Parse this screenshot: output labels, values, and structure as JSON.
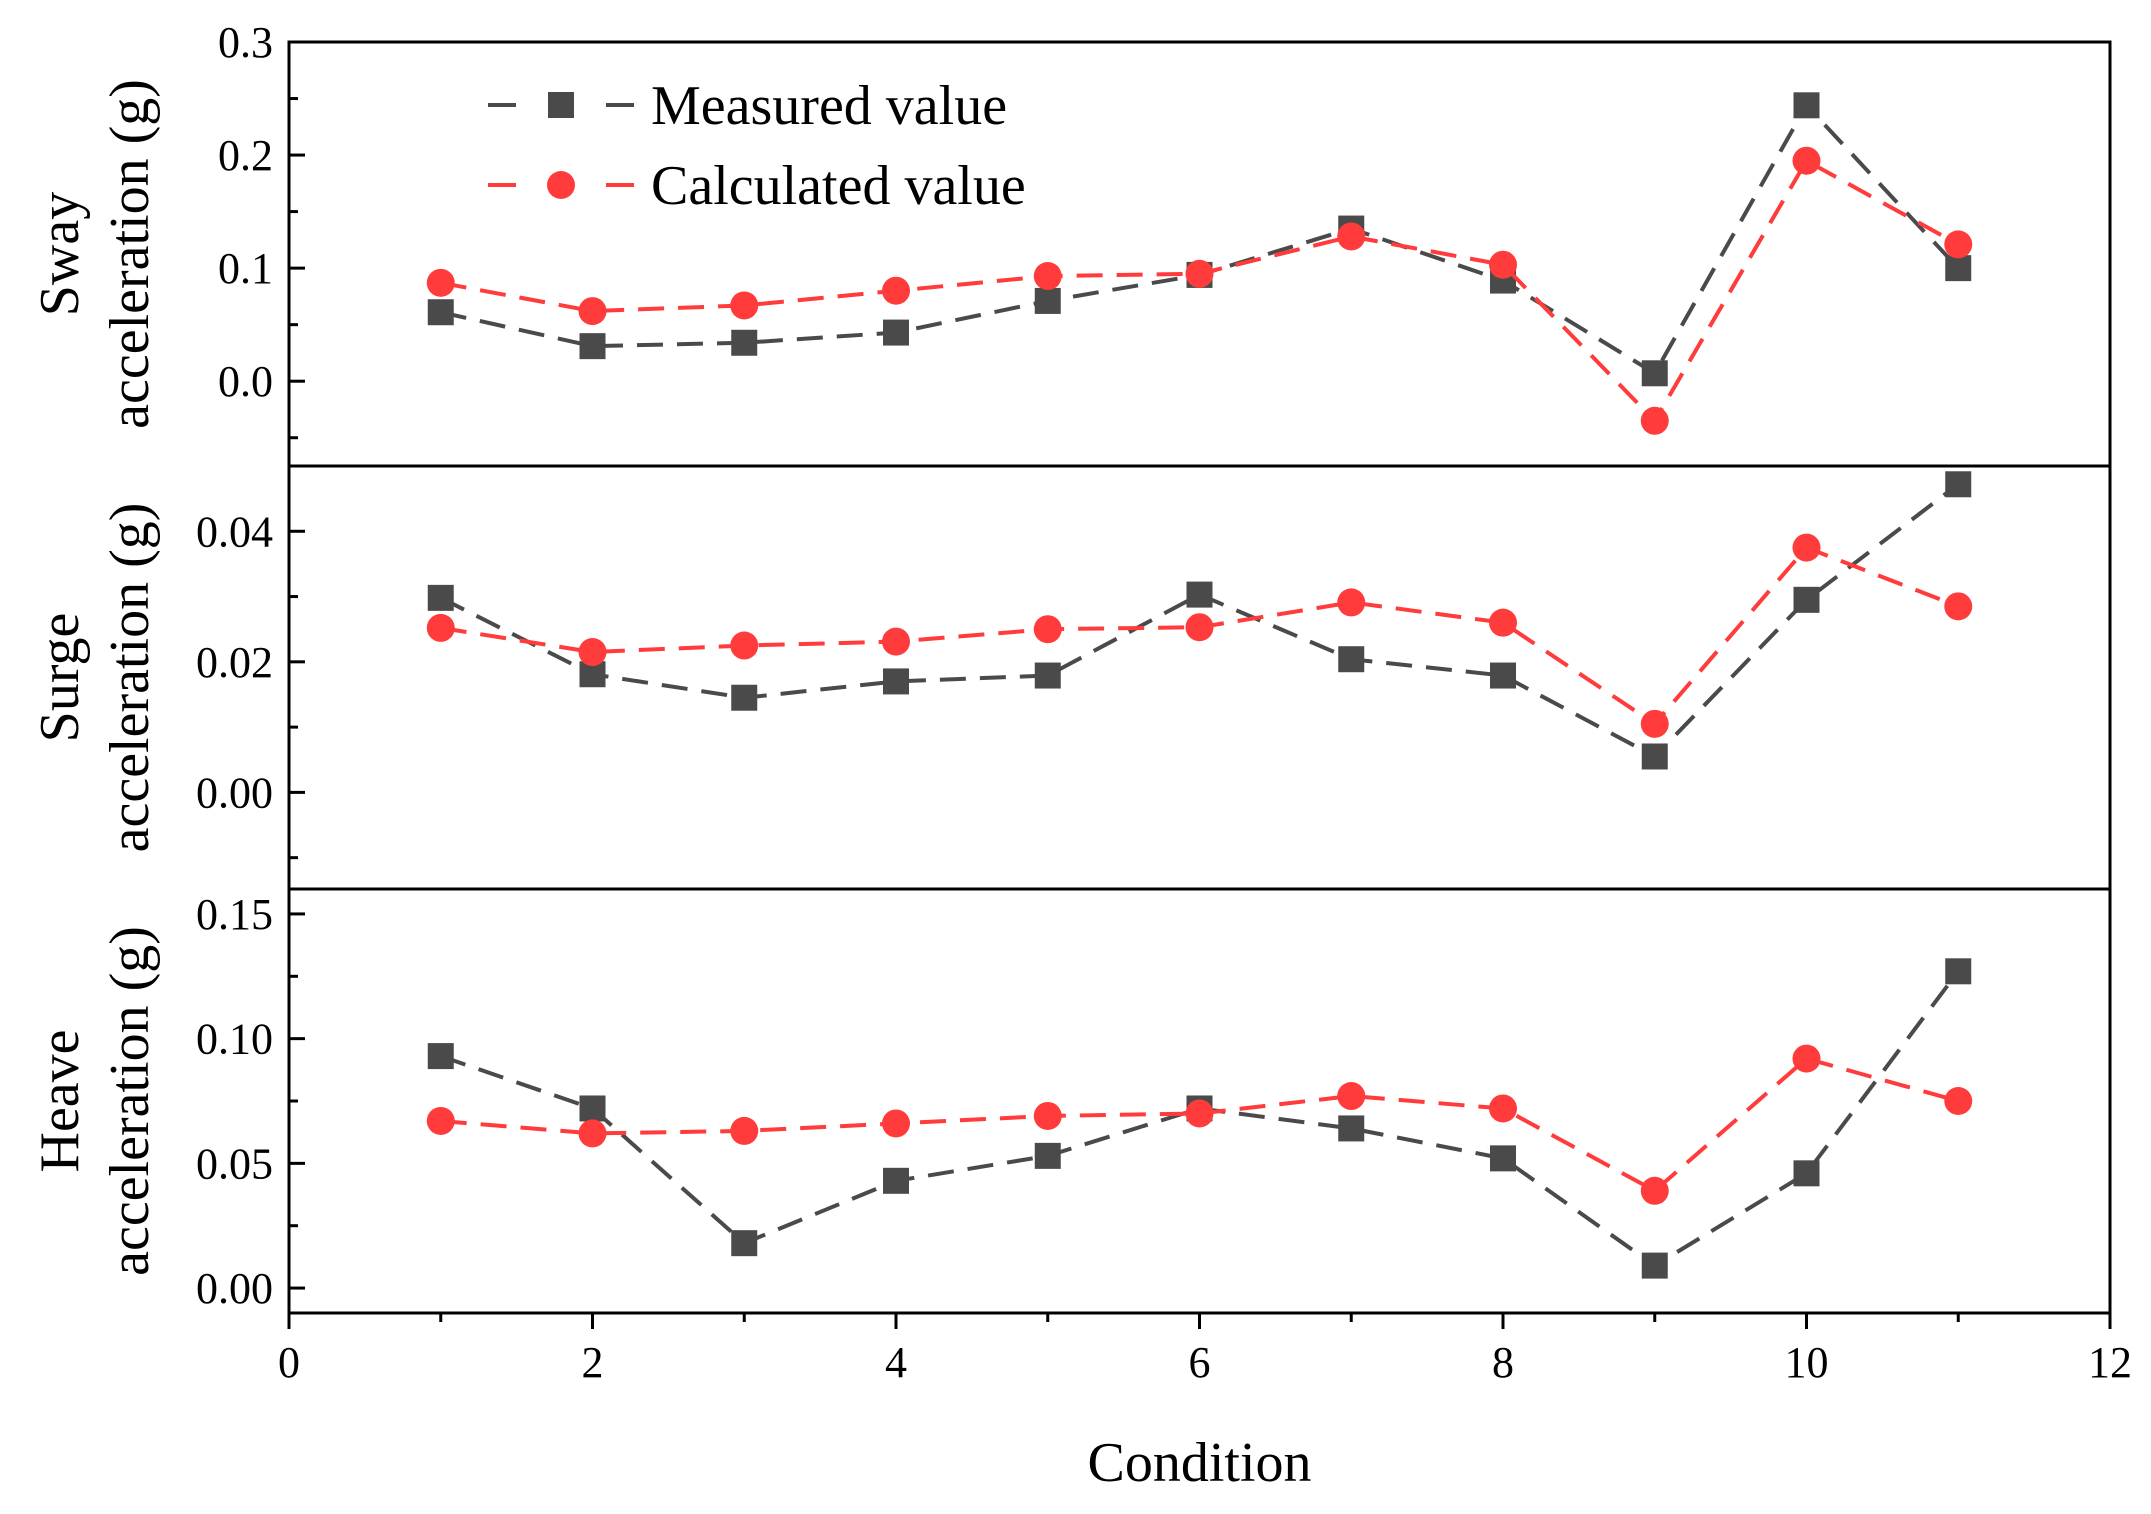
{
  "chart_data": {
    "type": "line",
    "xlabel": "Condition",
    "xlim": [
      0,
      12
    ],
    "xticks": [
      0,
      2,
      4,
      6,
      8,
      10,
      12
    ],
    "x": [
      1,
      2,
      3,
      4,
      5,
      6,
      7,
      8,
      9,
      10,
      11
    ],
    "legend": {
      "placement": "top-left",
      "entries": [
        "Measured value",
        "Calculated value"
      ]
    },
    "colors": {
      "measured": "#4a4a4a",
      "calculated": "#ff3b3b"
    },
    "panels": [
      {
        "id": "sway",
        "ylabel_lines": [
          "Sway",
          "acceleration (g)"
        ],
        "ylim": [
          -0.075,
          0.3
        ],
        "yticks": [
          0.0,
          0.1,
          0.2,
          0.3
        ],
        "ytick_labels": [
          "0.0",
          "0.1",
          "0.2",
          "0.3"
        ],
        "series": [
          {
            "name": "Measured value",
            "values": [
              0.061,
              0.031,
              0.034,
              0.043,
              0.071,
              0.094,
              0.135,
              0.089,
              0.007,
              0.244,
              0.1
            ]
          },
          {
            "name": "Calculated value",
            "values": [
              0.087,
              0.062,
              0.067,
              0.08,
              0.093,
              0.095,
              0.128,
              0.103,
              -0.035,
              0.195,
              0.121
            ]
          }
        ]
      },
      {
        "id": "surge",
        "ylabel_lines": [
          "Surge",
          "acceleration (g)"
        ],
        "ylim": [
          -0.0148,
          0.05
        ],
        "yticks": [
          0.0,
          0.02,
          0.04
        ],
        "ytick_labels": [
          "0.00",
          "0.02",
          "0.04"
        ],
        "series": [
          {
            "name": "Measured value",
            "values": [
              0.0298,
              0.0181,
              0.0145,
              0.017,
              0.0179,
              0.0303,
              0.0204,
              0.0179,
              0.0055,
              0.0295,
              0.0472
            ]
          },
          {
            "name": "Calculated value",
            "values": [
              0.0252,
              0.0215,
              0.0225,
              0.0231,
              0.025,
              0.0253,
              0.0291,
              0.026,
              0.0105,
              0.0375,
              0.0285
            ]
          }
        ]
      },
      {
        "id": "heave",
        "ylabel_lines": [
          "Heave",
          "acceleration (g)"
        ],
        "ylim": [
          -0.01,
          0.16
        ],
        "yticks": [
          0.0,
          0.05,
          0.1,
          0.15
        ],
        "ytick_labels": [
          "0.00",
          "0.05",
          "0.10",
          "0.15"
        ],
        "series": [
          {
            "name": "Measured value",
            "values": [
              0.093,
              0.072,
              0.018,
              0.043,
              0.053,
              0.072,
              0.064,
              0.052,
              0.009,
              0.046,
              0.127
            ]
          },
          {
            "name": "Calculated value",
            "values": [
              0.067,
              0.062,
              0.063,
              0.066,
              0.069,
              0.07,
              0.077,
              0.072,
              0.039,
              0.092,
              0.075
            ]
          }
        ]
      }
    ]
  }
}
